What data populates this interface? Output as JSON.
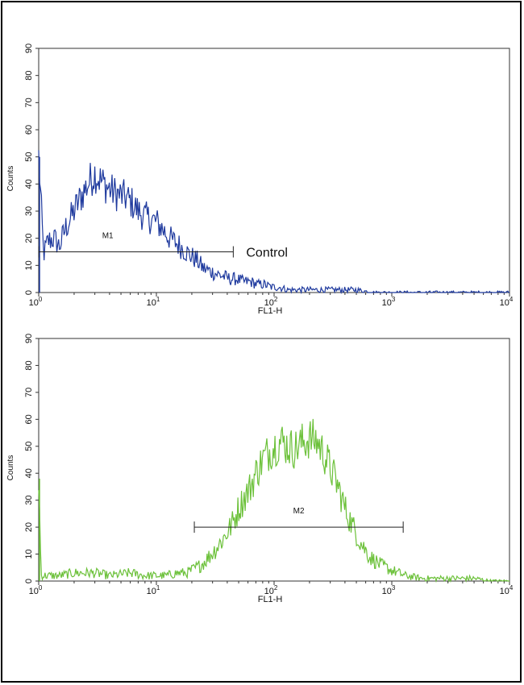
{
  "chart_data": [
    {
      "type": "line",
      "title": "",
      "xlabel": "FL1-H",
      "ylabel": "Counts",
      "x_scale": "log",
      "xlim": [
        1,
        10000
      ],
      "ylim": [
        0,
        90
      ],
      "x_ticks": [
        {
          "base": "10",
          "exp": "0"
        },
        {
          "base": "10",
          "exp": "1"
        },
        {
          "base": "10",
          "exp": "2"
        },
        {
          "base": "10",
          "exp": "3"
        },
        {
          "base": "10",
          "exp": "4"
        }
      ],
      "y_ticks": [
        "0",
        "10",
        "20",
        "30",
        "40",
        "50",
        "60",
        "70",
        "80",
        "90"
      ],
      "color": "#1f3a9e",
      "series": [
        {
          "name": "Control",
          "x": [
            1.0,
            1.1,
            1.2,
            1.35,
            1.5,
            1.7,
            1.9,
            2.1,
            2.4,
            2.7,
            3.0,
            3.4,
            3.8,
            4.3,
            4.8,
            5.5,
            6.2,
            7.0,
            8.0,
            9.0,
            10.0,
            11.5,
            13.0,
            15.0,
            17.0,
            19.0,
            22.0,
            25.0,
            28.0,
            32.0,
            37.0,
            42.0,
            48.0,
            55.0,
            63.0,
            72.0,
            82.0,
            95.0,
            110.0,
            130.0,
            160.0,
            200.0,
            260.0,
            350.0,
            500.0,
            700.0,
            1000.0,
            2000.0,
            5000.0,
            10000.0
          ],
          "y": [
            50,
            14,
            19,
            20,
            17,
            24,
            28,
            32,
            37,
            41,
            44,
            41,
            39,
            37,
            36,
            35,
            33,
            30,
            28,
            27,
            26,
            23,
            20,
            18,
            16,
            14,
            12,
            9,
            8,
            7,
            6,
            5,
            5,
            4,
            4,
            3,
            3,
            2,
            2,
            1,
            1,
            1,
            1,
            1,
            1,
            0,
            0,
            0,
            0,
            0
          ]
        }
      ],
      "marker": {
        "label": "M1",
        "x_start": 1.0,
        "x_end": 45.0,
        "y": 15
      },
      "annotation": "Control"
    },
    {
      "type": "line",
      "title": "",
      "xlabel": "FL1-H",
      "ylabel": "Counts",
      "x_scale": "log",
      "xlim": [
        1,
        10000
      ],
      "ylim": [
        0,
        90
      ],
      "x_ticks": [
        {
          "base": "10",
          "exp": "0"
        },
        {
          "base": "10",
          "exp": "1"
        },
        {
          "base": "10",
          "exp": "2"
        },
        {
          "base": "10",
          "exp": "3"
        },
        {
          "base": "10",
          "exp": "4"
        }
      ],
      "y_ticks": [
        "0",
        "10",
        "20",
        "30",
        "40",
        "50",
        "60",
        "70",
        "80",
        "90"
      ],
      "color": "#6cc13a",
      "series": [
        {
          "name": "",
          "x": [
            1.0,
            1.05,
            1.2,
            1.5,
            2.0,
            3.0,
            4.0,
            6.0,
            8.0,
            10.0,
            12.0,
            15.0,
            18.0,
            20.0,
            24.0,
            28.0,
            32.0,
            36.0,
            40.0,
            45.0,
            50.0,
            56.0,
            63.0,
            70.0,
            80.0,
            90.0,
            100.0,
            115.0,
            130.0,
            150.0,
            170.0,
            200.0,
            230.0,
            260.0,
            300.0,
            350.0,
            400.0,
            470.0,
            550.0,
            650.0,
            800.0,
            1000.0,
            1300.0,
            1800.0,
            2500.0,
            3500.0,
            5000.0,
            7000.0,
            10000.0
          ],
          "y": [
            38,
            2,
            2,
            2,
            3,
            3,
            2,
            3,
            2,
            2,
            2,
            3,
            3,
            4,
            6,
            9,
            12,
            15,
            18,
            22,
            27,
            31,
            35,
            40,
            45,
            48,
            50,
            52,
            50,
            49,
            51,
            53,
            52,
            48,
            42,
            35,
            27,
            20,
            14,
            9,
            6,
            4,
            2,
            1,
            1,
            1,
            1,
            0,
            0
          ]
        }
      ],
      "marker": {
        "label": "M2",
        "x_start": 21.0,
        "x_end": 1250.0,
        "y": 20
      }
    }
  ]
}
